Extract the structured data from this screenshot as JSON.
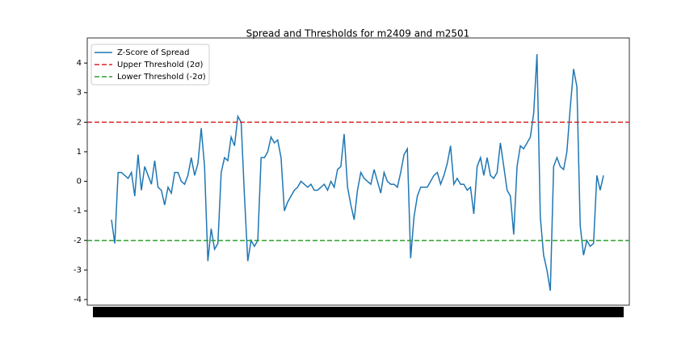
{
  "chart_data": {
    "type": "line",
    "title": "Spread and Thresholds for m2409 and m2501",
    "series": [
      {
        "name": "Z-Score of Spread",
        "color": "#1f77b4",
        "values": [
          -1.3,
          -2.1,
          0.3,
          0.3,
          0.2,
          0.1,
          0.3,
          -0.5,
          0.9,
          -0.3,
          0.5,
          0.2,
          -0.1,
          0.7,
          -0.2,
          -0.3,
          -0.8,
          -0.2,
          -0.4,
          0.3,
          0.3,
          0,
          -0.1,
          0.2,
          0.8,
          0.2,
          0.6,
          1.8,
          0.5,
          -2.7,
          -1.6,
          -2.3,
          -2.1,
          0.3,
          0.8,
          0.7,
          1.5,
          1.2,
          2.2,
          2.0,
          -0.5,
          -2.7,
          -2.0,
          -2.2,
          -2.0,
          0.8,
          0.8,
          1.0,
          1.5,
          1.3,
          1.4,
          0.8,
          -1.0,
          -0.7,
          -0.5,
          -0.3,
          -0.2,
          0,
          -0.1,
          -0.2,
          -0.1,
          -0.3,
          -0.3,
          -0.2,
          -0.1,
          -0.3,
          0,
          -0.2,
          0.4,
          0.5,
          1.6,
          -0.2,
          -0.8,
          -1.3,
          -0.3,
          0.3,
          0.1,
          0,
          -0.1,
          0.4,
          0,
          -0.4,
          0.3,
          0,
          -0.1,
          -0.1,
          -0.2,
          0.3,
          0.9,
          1.1,
          -2.6,
          -1.2,
          -0.5,
          -0.2,
          -0.2,
          -0.2,
          0,
          0.2,
          0.3,
          -0.1,
          0.2,
          0.6,
          1.2,
          -0.1,
          0.1,
          -0.1,
          -0.1,
          -0.3,
          -0.2,
          -1.1,
          0.5,
          0.8,
          0.2,
          0.8,
          0.2,
          0.1,
          0.3,
          1.3,
          0.5,
          -0.3,
          -0.5,
          -1.8,
          0.5,
          1.2,
          1.1,
          1.3,
          1.5,
          2.3,
          4.3,
          -1.2,
          -2.5,
          -3.0,
          -3.7,
          0.5,
          0.8,
          0.5,
          0.4,
          1.0,
          2.5,
          3.8,
          3.2,
          -1.5,
          -2.5,
          -2.0,
          -2.2,
          -2.1,
          0.2,
          -0.3,
          0.2
        ]
      }
    ],
    "hlines": [
      {
        "name": "Upper Threshold (2σ)",
        "color": "#d62728",
        "value": 2
      },
      {
        "name": "Lower Threshold (-2σ)",
        "color": "#2ca02c",
        "value": -2
      }
    ],
    "ylim": [
      -4.19,
      4.85
    ],
    "yticks": [
      -4,
      -3,
      -2,
      -1,
      0,
      1,
      2,
      3,
      4
    ]
  }
}
